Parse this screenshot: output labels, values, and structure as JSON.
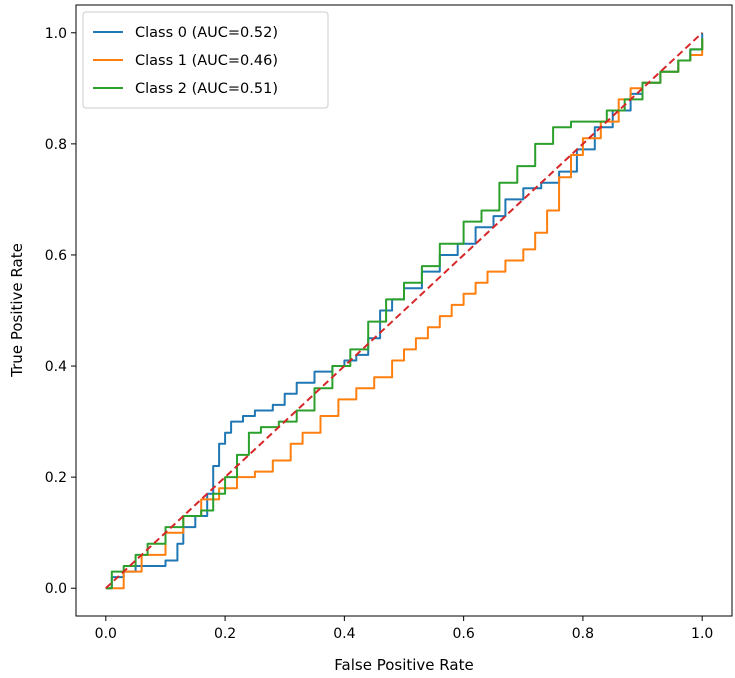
{
  "chart_data": {
    "type": "line",
    "title": "",
    "xlabel": "False Positive Rate",
    "ylabel": "True Positive Rate",
    "xlim": [
      -0.05,
      1.05
    ],
    "ylim": [
      -0.05,
      1.05
    ],
    "xticks": [
      "0.0",
      "0.2",
      "0.4",
      "0.6",
      "0.8",
      "1.0"
    ],
    "yticks": [
      "0.0",
      "0.2",
      "0.4",
      "0.6",
      "0.8",
      "1.0"
    ],
    "grid": false,
    "legend_position": "upper-left",
    "series": [
      {
        "name": "Class 0 (AUC=0.52)",
        "color": "#1f77b4",
        "points": [
          [
            0,
            0
          ],
          [
            0.01,
            0.02
          ],
          [
            0.03,
            0.03
          ],
          [
            0.05,
            0.04
          ],
          [
            0.08,
            0.04
          ],
          [
            0.1,
            0.05
          ],
          [
            0.12,
            0.08
          ],
          [
            0.13,
            0.11
          ],
          [
            0.15,
            0.13
          ],
          [
            0.17,
            0.17
          ],
          [
            0.18,
            0.22
          ],
          [
            0.19,
            0.26
          ],
          [
            0.2,
            0.28
          ],
          [
            0.21,
            0.3
          ],
          [
            0.23,
            0.31
          ],
          [
            0.25,
            0.32
          ],
          [
            0.28,
            0.33
          ],
          [
            0.3,
            0.35
          ],
          [
            0.32,
            0.37
          ],
          [
            0.35,
            0.39
          ],
          [
            0.38,
            0.4
          ],
          [
            0.4,
            0.41
          ],
          [
            0.42,
            0.42
          ],
          [
            0.44,
            0.45
          ],
          [
            0.46,
            0.5
          ],
          [
            0.48,
            0.52
          ],
          [
            0.5,
            0.54
          ],
          [
            0.53,
            0.57
          ],
          [
            0.56,
            0.6
          ],
          [
            0.59,
            0.62
          ],
          [
            0.62,
            0.65
          ],
          [
            0.65,
            0.67
          ],
          [
            0.67,
            0.7
          ],
          [
            0.7,
            0.72
          ],
          [
            0.73,
            0.73
          ],
          [
            0.76,
            0.75
          ],
          [
            0.79,
            0.79
          ],
          [
            0.82,
            0.83
          ],
          [
            0.85,
            0.86
          ],
          [
            0.88,
            0.89
          ],
          [
            0.9,
            0.91
          ],
          [
            0.93,
            0.93
          ],
          [
            0.96,
            0.95
          ],
          [
            0.98,
            0.97
          ],
          [
            1.0,
            1.0
          ]
        ]
      },
      {
        "name": "Class 1 (AUC=0.46)",
        "color": "#ff7f0e",
        "points": [
          [
            0,
            0
          ],
          [
            0.03,
            0.03
          ],
          [
            0.06,
            0.06
          ],
          [
            0.1,
            0.1
          ],
          [
            0.13,
            0.13
          ],
          [
            0.16,
            0.16
          ],
          [
            0.19,
            0.18
          ],
          [
            0.22,
            0.2
          ],
          [
            0.25,
            0.21
          ],
          [
            0.28,
            0.23
          ],
          [
            0.31,
            0.26
          ],
          [
            0.33,
            0.28
          ],
          [
            0.36,
            0.31
          ],
          [
            0.39,
            0.34
          ],
          [
            0.42,
            0.36
          ],
          [
            0.45,
            0.38
          ],
          [
            0.48,
            0.41
          ],
          [
            0.5,
            0.43
          ],
          [
            0.52,
            0.45
          ],
          [
            0.54,
            0.47
          ],
          [
            0.56,
            0.49
          ],
          [
            0.58,
            0.51
          ],
          [
            0.6,
            0.53
          ],
          [
            0.62,
            0.55
          ],
          [
            0.64,
            0.57
          ],
          [
            0.67,
            0.59
          ],
          [
            0.7,
            0.61
          ],
          [
            0.72,
            0.64
          ],
          [
            0.74,
            0.68
          ],
          [
            0.76,
            0.74
          ],
          [
            0.78,
            0.78
          ],
          [
            0.8,
            0.81
          ],
          [
            0.83,
            0.84
          ],
          [
            0.86,
            0.88
          ],
          [
            0.88,
            0.9
          ],
          [
            0.9,
            0.91
          ],
          [
            0.93,
            0.93
          ],
          [
            0.96,
            0.95
          ],
          [
            0.98,
            0.96
          ],
          [
            1.0,
            0.99
          ]
        ]
      },
      {
        "name": "Class 2 (AUC=0.51)",
        "color": "#2ca02c",
        "points": [
          [
            0,
            0
          ],
          [
            0.01,
            0.03
          ],
          [
            0.03,
            0.04
          ],
          [
            0.05,
            0.06
          ],
          [
            0.07,
            0.08
          ],
          [
            0.1,
            0.11
          ],
          [
            0.13,
            0.13
          ],
          [
            0.16,
            0.14
          ],
          [
            0.18,
            0.17
          ],
          [
            0.2,
            0.2
          ],
          [
            0.22,
            0.24
          ],
          [
            0.24,
            0.28
          ],
          [
            0.26,
            0.29
          ],
          [
            0.29,
            0.3
          ],
          [
            0.32,
            0.32
          ],
          [
            0.35,
            0.36
          ],
          [
            0.38,
            0.4
          ],
          [
            0.41,
            0.43
          ],
          [
            0.44,
            0.48
          ],
          [
            0.47,
            0.52
          ],
          [
            0.5,
            0.55
          ],
          [
            0.53,
            0.58
          ],
          [
            0.56,
            0.62
          ],
          [
            0.6,
            0.66
          ],
          [
            0.63,
            0.68
          ],
          [
            0.66,
            0.73
          ],
          [
            0.69,
            0.76
          ],
          [
            0.72,
            0.8
          ],
          [
            0.75,
            0.83
          ],
          [
            0.78,
            0.84
          ],
          [
            0.81,
            0.84
          ],
          [
            0.84,
            0.86
          ],
          [
            0.87,
            0.88
          ],
          [
            0.9,
            0.91
          ],
          [
            0.93,
            0.93
          ],
          [
            0.96,
            0.95
          ],
          [
            0.98,
            0.97
          ],
          [
            1.0,
            0.99
          ]
        ]
      },
      {
        "name": "",
        "color": "#d62728",
        "dashed": true,
        "points": [
          [
            0,
            0
          ],
          [
            1,
            1
          ]
        ]
      }
    ]
  }
}
